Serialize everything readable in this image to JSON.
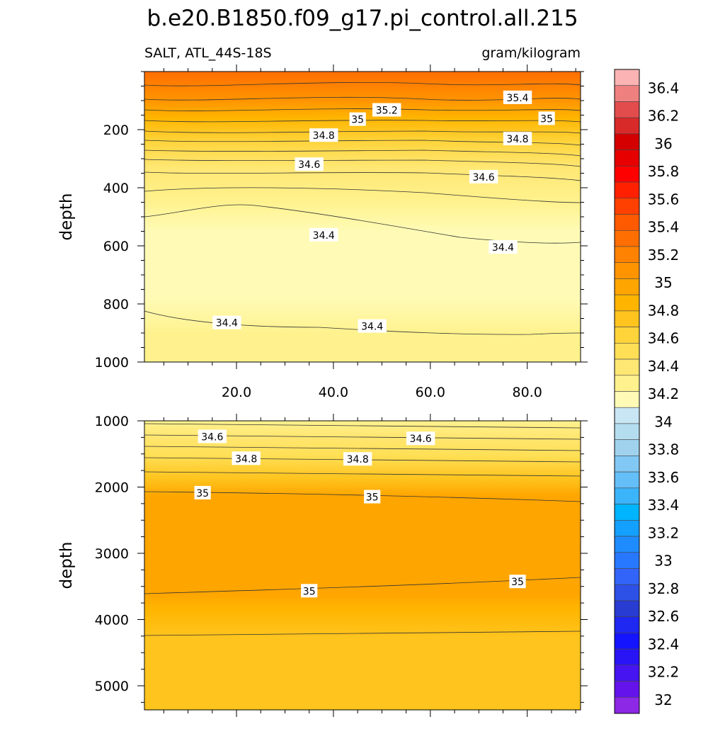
{
  "title": "b.e20.B1850.f09_g17.pi_control.all.215",
  "subtitle_left": "SALT, ATL_44S-18S",
  "subtitle_right": "gram/kilogram",
  "colorbar": {
    "labels": [
      "36.4",
      "36.2",
      "36",
      "35.8",
      "35.6",
      "35.4",
      "35.2",
      "35",
      "34.8",
      "34.6",
      "34.4",
      "34.2",
      "34",
      "33.8",
      "33.6",
      "33.4",
      "33.2",
      "33",
      "32.8",
      "32.6",
      "32.4",
      "32.2",
      "32"
    ],
    "colors": [
      "#fbb3b3",
      "#ef8080",
      "#e34c4c",
      "#d92a2a",
      "#d40000",
      "#e60000",
      "#ff0000",
      "#ff2000",
      "#ff4000",
      "#ff5a00",
      "#ff6e00",
      "#ff8200",
      "#ff9400",
      "#ffa500",
      "#ffb500",
      "#ffc41e",
      "#ffd43a",
      "#ffdf55",
      "#ffe773",
      "#fff28e",
      "#fffbb6",
      "#c8e6f4",
      "#b4ddf0",
      "#a0d2ee",
      "#82c8f5",
      "#64bef8",
      "#3cb4fa",
      "#00b4ff",
      "#14a0ff",
      "#1e8cff",
      "#2878ff",
      "#3264fa",
      "#2d50e6",
      "#283cd2",
      "#1e28f0",
      "#1414ff",
      "#2814f5",
      "#4614f0",
      "#6414eb",
      "#8c28e6"
    ]
  },
  "chart_data": [
    {
      "type": "contour",
      "panel": "upper",
      "xlabel": "",
      "ylabel": "depth",
      "x_ticks": [
        "20.0",
        "40.0",
        "60.0",
        "80.0"
      ],
      "x_tick_values": [
        20,
        40,
        60,
        80
      ],
      "xlim": [
        1,
        91
      ],
      "y_ticks": [
        "200",
        "400",
        "600",
        "800",
        "1000"
      ],
      "y_tick_values": [
        200,
        400,
        600,
        800,
        1000
      ],
      "ylim": [
        0,
        1000
      ],
      "y_inverted": true,
      "contour_labels": [
        {
          "text": "35.4",
          "x": 78,
          "y": 90
        },
        {
          "text": "35.2",
          "x": 51,
          "y": 133
        },
        {
          "text": "35",
          "x": 45,
          "y": 165
        },
        {
          "text": "35",
          "x": 84,
          "y": 162
        },
        {
          "text": "34.8",
          "x": 38,
          "y": 220
        },
        {
          "text": "34.8",
          "x": 78,
          "y": 232
        },
        {
          "text": "34.6",
          "x": 35,
          "y": 320
        },
        {
          "text": "34.6",
          "x": 71,
          "y": 363
        },
        {
          "text": "34.4",
          "x": 38,
          "y": 563
        },
        {
          "text": "34.4",
          "x": 75,
          "y": 605
        },
        {
          "text": "34.4",
          "x": 18,
          "y": 865
        },
        {
          "text": "34.4",
          "x": 48,
          "y": 877
        }
      ]
    },
    {
      "type": "contour",
      "panel": "lower",
      "xlabel": "",
      "ylabel": "depth",
      "y_ticks": [
        "1000",
        "2000",
        "3000",
        "4000",
        "5000"
      ],
      "y_tick_values": [
        1000,
        2000,
        3000,
        4000,
        5000
      ],
      "ylim": [
        1000,
        5400
      ],
      "y_inverted": true,
      "xlim": [
        1,
        91
      ],
      "contour_labels": [
        {
          "text": "34.6",
          "x": 15,
          "y": 1240
        },
        {
          "text": "34.6",
          "x": 58,
          "y": 1270
        },
        {
          "text": "34.8",
          "x": 22,
          "y": 1570
        },
        {
          "text": "34.8",
          "x": 45,
          "y": 1580
        },
        {
          "text": "35",
          "x": 13,
          "y": 2090
        },
        {
          "text": "35",
          "x": 48,
          "y": 2150
        },
        {
          "text": "35",
          "x": 35,
          "y": 3570
        },
        {
          "text": "35",
          "x": 78,
          "y": 3430
        }
      ]
    }
  ]
}
